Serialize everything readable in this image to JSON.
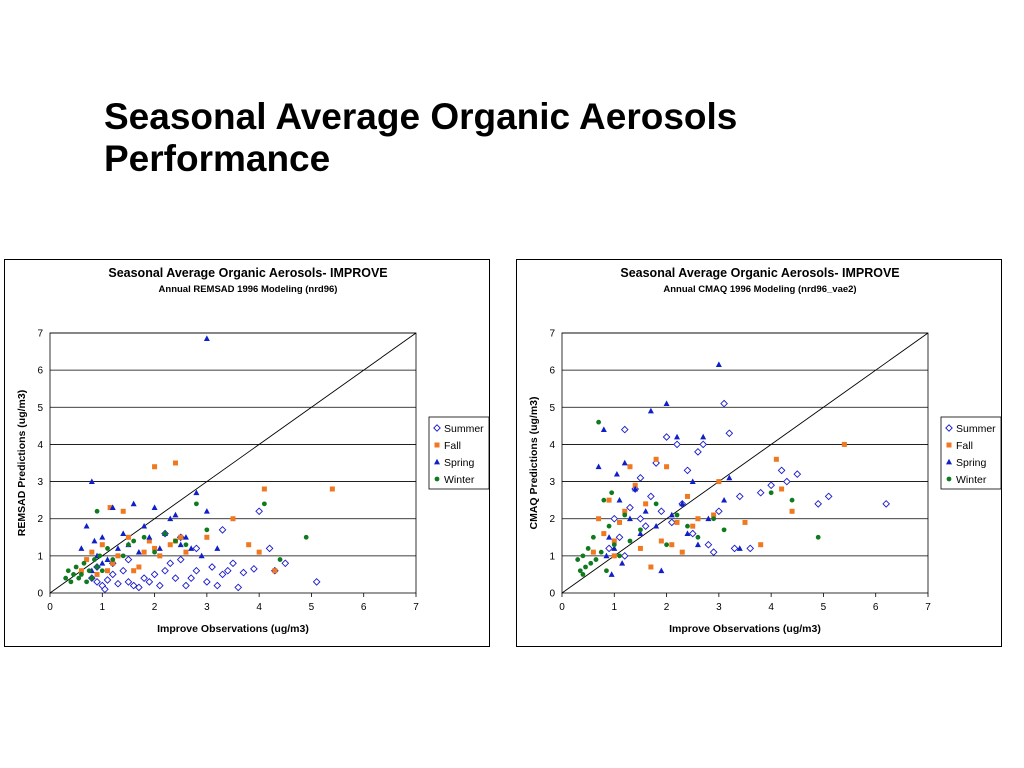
{
  "slide": {
    "title_line1": "Seasonal Average Organic Aerosols",
    "title_line2": "Performance"
  },
  "colors": {
    "summer": "#1a1acc",
    "fall": "#f07820",
    "spring": "#1020c8",
    "winter": "#0f7a1e",
    "gridline": "#000000",
    "one_to_one_line": "#000000"
  },
  "chart_data": [
    {
      "type": "scatter",
      "title": "Seasonal Average Organic Aerosols- IMPROVE",
      "subtitle": "Annual REMSAD 1996 Modeling (nrd96)",
      "xlabel": "Improve Observations (ug/m3)",
      "ylabel": "REMSAD Predictions (ug/m3)",
      "xlim": [
        0,
        7
      ],
      "ylim": [
        0,
        7
      ],
      "xticks": [
        "0",
        "1",
        "2",
        "3",
        "4",
        "5",
        "6",
        "7"
      ],
      "yticks": [
        "0",
        "1",
        "2",
        "3",
        "4",
        "5",
        "6",
        "7"
      ],
      "grid": "horizontal",
      "legend": "right",
      "one_to_one_line": true,
      "series": [
        {
          "name": "Summer",
          "marker": "diamond-open",
          "points": [
            [
              0.8,
              0.4
            ],
            [
              0.9,
              0.3
            ],
            [
              1.0,
              0.2
            ],
            [
              1.05,
              0.1
            ],
            [
              1.1,
              0.35
            ],
            [
              1.2,
              0.5
            ],
            [
              1.3,
              0.25
            ],
            [
              1.4,
              0.6
            ],
            [
              1.5,
              0.3
            ],
            [
              1.6,
              0.2
            ],
            [
              1.7,
              0.15
            ],
            [
              1.8,
              0.4
            ],
            [
              1.9,
              0.3
            ],
            [
              2.0,
              0.5
            ],
            [
              2.1,
              0.2
            ],
            [
              2.2,
              0.6
            ],
            [
              2.3,
              0.8
            ],
            [
              2.4,
              0.4
            ],
            [
              2.5,
              0.9
            ],
            [
              2.6,
              0.2
            ],
            [
              2.7,
              0.4
            ],
            [
              2.8,
              0.6
            ],
            [
              3.0,
              0.3
            ],
            [
              3.1,
              0.7
            ],
            [
              3.2,
              0.2
            ],
            [
              3.3,
              0.5
            ],
            [
              3.4,
              0.6
            ],
            [
              3.5,
              0.8
            ],
            [
              3.6,
              0.15
            ],
            [
              3.7,
              0.55
            ],
            [
              3.9,
              0.65
            ],
            [
              4.0,
              2.2
            ],
            [
              4.2,
              1.2
            ],
            [
              4.3,
              0.6
            ],
            [
              4.5,
              0.8
            ],
            [
              5.1,
              0.3
            ],
            [
              2.2,
              1.6
            ],
            [
              2.5,
              1.5
            ],
            [
              2.8,
              1.2
            ],
            [
              3.3,
              1.7
            ],
            [
              1.2,
              0.8
            ],
            [
              1.5,
              0.9
            ],
            [
              0.9,
              0.7
            ]
          ]
        },
        {
          "name": "Fall",
          "marker": "square",
          "points": [
            [
              0.6,
              0.6
            ],
            [
              0.7,
              0.9
            ],
            [
              0.8,
              1.1
            ],
            [
              0.9,
              0.5
            ],
            [
              1.0,
              1.3
            ],
            [
              1.1,
              0.6
            ],
            [
              1.2,
              0.8
            ],
            [
              1.3,
              1.0
            ],
            [
              1.4,
              2.2
            ],
            [
              1.5,
              1.5
            ],
            [
              1.6,
              0.6
            ],
            [
              1.7,
              0.7
            ],
            [
              1.8,
              1.1
            ],
            [
              1.9,
              1.4
            ],
            [
              2.0,
              1.2
            ],
            [
              2.1,
              1.0
            ],
            [
              2.3,
              1.3
            ],
            [
              2.4,
              1.4
            ],
            [
              2.5,
              1.5
            ],
            [
              2.6,
              1.1
            ],
            [
              2.0,
              3.4
            ],
            [
              2.4,
              3.5
            ],
            [
              3.0,
              1.5
            ],
            [
              3.5,
              2.0
            ],
            [
              3.8,
              1.3
            ],
            [
              4.0,
              1.1
            ],
            [
              4.1,
              2.8
            ],
            [
              4.3,
              0.6
            ],
            [
              5.4,
              2.8
            ],
            [
              1.15,
              2.3
            ]
          ]
        },
        {
          "name": "Spring",
          "marker": "triangle",
          "points": [
            [
              0.6,
              1.2
            ],
            [
              0.7,
              1.8
            ],
            [
              0.8,
              3.0
            ],
            [
              0.85,
              1.4
            ],
            [
              0.9,
              1.0
            ],
            [
              1.0,
              1.5
            ],
            [
              1.1,
              0.9
            ],
            [
              1.2,
              2.3
            ],
            [
              1.3,
              1.2
            ],
            [
              1.4,
              1.6
            ],
            [
              1.5,
              1.3
            ],
            [
              1.6,
              2.4
            ],
            [
              1.7,
              1.1
            ],
            [
              1.8,
              1.8
            ],
            [
              1.9,
              1.5
            ],
            [
              2.0,
              2.3
            ],
            [
              2.1,
              1.2
            ],
            [
              2.2,
              1.6
            ],
            [
              2.3,
              2.0
            ],
            [
              2.4,
              2.1
            ],
            [
              2.5,
              1.3
            ],
            [
              2.6,
              1.5
            ],
            [
              2.7,
              1.2
            ],
            [
              2.8,
              2.7
            ],
            [
              2.9,
              1.0
            ],
            [
              3.0,
              2.2
            ],
            [
              3.0,
              6.85
            ],
            [
              3.2,
              1.2
            ],
            [
              1.0,
              0.8
            ],
            [
              0.8,
              0.6
            ]
          ]
        },
        {
          "name": "Winter",
          "marker": "circle",
          "points": [
            [
              0.3,
              0.4
            ],
            [
              0.35,
              0.6
            ],
            [
              0.4,
              0.3
            ],
            [
              0.45,
              0.5
            ],
            [
              0.5,
              0.7
            ],
            [
              0.55,
              0.4
            ],
            [
              0.6,
              0.5
            ],
            [
              0.65,
              0.8
            ],
            [
              0.7,
              0.3
            ],
            [
              0.75,
              0.6
            ],
            [
              0.8,
              0.4
            ],
            [
              0.85,
              0.9
            ],
            [
              0.9,
              0.7
            ],
            [
              0.95,
              1.0
            ],
            [
              1.0,
              0.6
            ],
            [
              1.1,
              1.2
            ],
            [
              1.2,
              0.9
            ],
            [
              1.4,
              1.0
            ],
            [
              1.5,
              1.3
            ],
            [
              1.6,
              1.4
            ],
            [
              1.8,
              1.5
            ],
            [
              2.0,
              1.1
            ],
            [
              2.2,
              1.6
            ],
            [
              2.4,
              1.4
            ],
            [
              2.6,
              1.3
            ],
            [
              2.8,
              2.4
            ],
            [
              3.0,
              1.7
            ],
            [
              4.1,
              2.4
            ],
            [
              4.4,
              0.9
            ],
            [
              4.9,
              1.5
            ],
            [
              0.9,
              2.2
            ]
          ]
        }
      ]
    },
    {
      "type": "scatter",
      "title": "Seasonal Average Organic Aerosols- IMPROVE",
      "subtitle": "Annual CMAQ 1996 Modeling (nrd96_vae2)",
      "xlabel": "Improve Observations (ug/m3)",
      "ylabel": "CMAQ Predictions (ug/m3)",
      "xlim": [
        0,
        7
      ],
      "ylim": [
        0,
        7
      ],
      "xticks": [
        "0",
        "1",
        "2",
        "3",
        "4",
        "5",
        "6",
        "7"
      ],
      "yticks": [
        "0",
        "1",
        "2",
        "3",
        "4",
        "5",
        "6",
        "7"
      ],
      "grid": "horizontal",
      "legend": "right",
      "one_to_one_line": true,
      "series": [
        {
          "name": "Summer",
          "marker": "diamond-open",
          "points": [
            [
              0.9,
              1.2
            ],
            [
              1.0,
              2.0
            ],
            [
              1.1,
              1.5
            ],
            [
              1.2,
              4.4
            ],
            [
              1.3,
              2.3
            ],
            [
              1.4,
              2.8
            ],
            [
              1.5,
              3.1
            ],
            [
              1.6,
              1.8
            ],
            [
              1.7,
              2.6
            ],
            [
              1.8,
              3.5
            ],
            [
              1.9,
              2.2
            ],
            [
              2.0,
              4.2
            ],
            [
              2.1,
              1.9
            ],
            [
              2.2,
              4.0
            ],
            [
              2.3,
              2.4
            ],
            [
              2.4,
              3.3
            ],
            [
              2.5,
              1.6
            ],
            [
              2.6,
              3.8
            ],
            [
              2.7,
              4.0
            ],
            [
              2.8,
              1.3
            ],
            [
              3.0,
              2.2
            ],
            [
              3.1,
              5.1
            ],
            [
              3.2,
              4.3
            ],
            [
              3.3,
              1.2
            ],
            [
              3.4,
              2.6
            ],
            [
              3.6,
              1.2
            ],
            [
              3.8,
              2.7
            ],
            [
              4.0,
              2.9
            ],
            [
              4.2,
              3.3
            ],
            [
              4.3,
              3.0
            ],
            [
              4.5,
              3.2
            ],
            [
              4.9,
              2.4
            ],
            [
              5.1,
              2.6
            ],
            [
              6.2,
              2.4
            ],
            [
              2.9,
              1.1
            ],
            [
              1.5,
              2.0
            ],
            [
              1.2,
              1.0
            ]
          ]
        },
        {
          "name": "Fall",
          "marker": "square",
          "points": [
            [
              0.6,
              1.1
            ],
            [
              0.7,
              2.0
            ],
            [
              0.8,
              1.6
            ],
            [
              0.9,
              2.5
            ],
            [
              1.0,
              1.4
            ],
            [
              1.1,
              1.9
            ],
            [
              1.2,
              2.2
            ],
            [
              1.3,
              3.4
            ],
            [
              1.4,
              2.9
            ],
            [
              1.5,
              1.2
            ],
            [
              1.6,
              2.4
            ],
            [
              1.7,
              0.7
            ],
            [
              1.8,
              3.6
            ],
            [
              1.9,
              1.4
            ],
            [
              2.0,
              3.4
            ],
            [
              2.1,
              1.3
            ],
            [
              2.2,
              1.9
            ],
            [
              2.3,
              1.1
            ],
            [
              2.4,
              2.6
            ],
            [
              2.5,
              1.8
            ],
            [
              2.6,
              2.0
            ],
            [
              3.0,
              3.0
            ],
            [
              3.5,
              1.9
            ],
            [
              3.8,
              1.3
            ],
            [
              4.1,
              3.6
            ],
            [
              4.2,
              2.8
            ],
            [
              4.4,
              2.2
            ],
            [
              5.4,
              4.0
            ],
            [
              2.9,
              2.1
            ],
            [
              1.0,
              1.0
            ]
          ]
        },
        {
          "name": "Spring",
          "marker": "triangle",
          "points": [
            [
              0.7,
              3.4
            ],
            [
              0.8,
              4.4
            ],
            [
              0.9,
              1.5
            ],
            [
              1.0,
              1.2
            ],
            [
              1.05,
              3.2
            ],
            [
              1.1,
              2.5
            ],
            [
              1.2,
              3.5
            ],
            [
              1.3,
              2.0
            ],
            [
              1.4,
              2.8
            ],
            [
              1.5,
              1.6
            ],
            [
              1.6,
              2.2
            ],
            [
              1.7,
              4.9
            ],
            [
              1.8,
              1.8
            ],
            [
              1.9,
              0.6
            ],
            [
              2.0,
              5.1
            ],
            [
              2.1,
              2.1
            ],
            [
              2.2,
              4.2
            ],
            [
              2.3,
              2.4
            ],
            [
              2.4,
              1.6
            ],
            [
              2.5,
              3.0
            ],
            [
              2.6,
              1.3
            ],
            [
              2.7,
              4.2
            ],
            [
              2.8,
              2.0
            ],
            [
              3.0,
              6.15
            ],
            [
              3.1,
              2.5
            ],
            [
              3.2,
              3.1
            ],
            [
              3.4,
              1.2
            ],
            [
              0.85,
              1.0
            ],
            [
              1.15,
              0.8
            ],
            [
              0.95,
              0.5
            ]
          ]
        },
        {
          "name": "Winter",
          "marker": "circle",
          "points": [
            [
              0.3,
              0.9
            ],
            [
              0.35,
              0.6
            ],
            [
              0.4,
              1.0
            ],
            [
              0.45,
              0.7
            ],
            [
              0.5,
              1.2
            ],
            [
              0.55,
              0.8
            ],
            [
              0.6,
              1.5
            ],
            [
              0.65,
              0.9
            ],
            [
              0.7,
              4.6
            ],
            [
              0.75,
              1.1
            ],
            [
              0.8,
              2.5
            ],
            [
              0.85,
              0.6
            ],
            [
              0.9,
              1.8
            ],
            [
              0.95,
              2.7
            ],
            [
              1.0,
              1.3
            ],
            [
              1.1,
              1.0
            ],
            [
              1.2,
              2.1
            ],
            [
              1.3,
              1.4
            ],
            [
              1.5,
              1.7
            ],
            [
              1.8,
              2.4
            ],
            [
              2.0,
              1.3
            ],
            [
              2.2,
              2.1
            ],
            [
              2.4,
              1.8
            ],
            [
              2.6,
              1.5
            ],
            [
              2.9,
              2.0
            ],
            [
              3.1,
              1.7
            ],
            [
              4.0,
              2.7
            ],
            [
              4.4,
              2.5
            ],
            [
              4.9,
              1.5
            ],
            [
              0.4,
              0.5
            ]
          ]
        }
      ]
    }
  ]
}
